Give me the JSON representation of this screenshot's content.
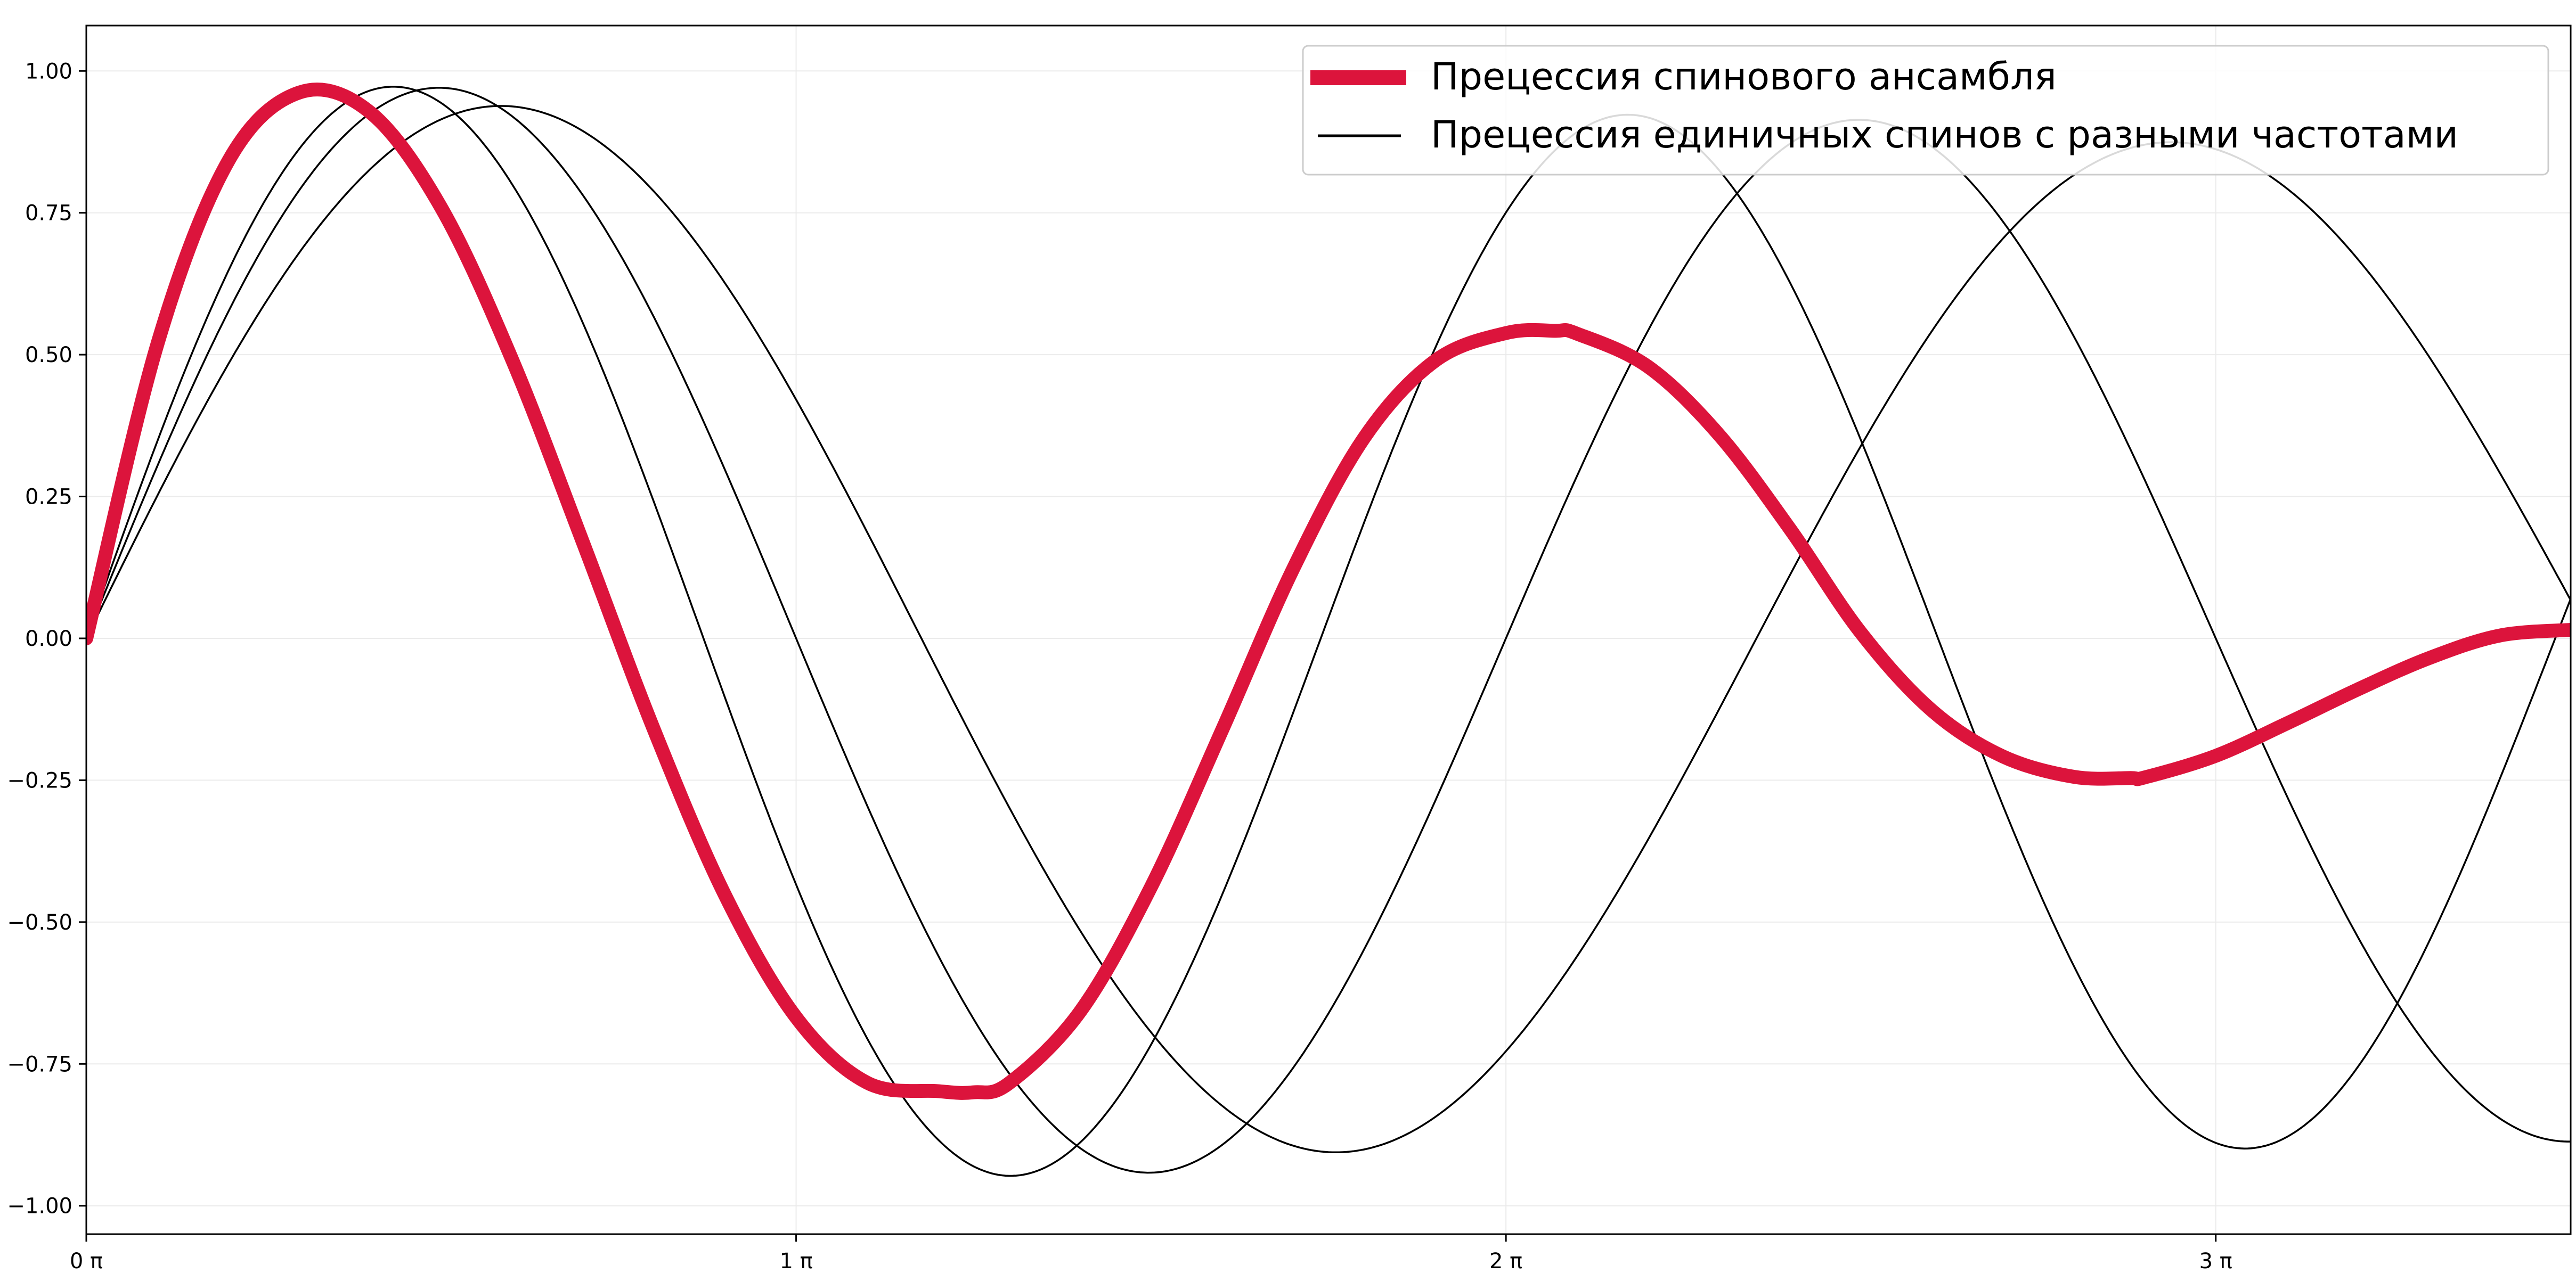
{
  "chart_data": {
    "type": "line",
    "title": "",
    "xlabel": "",
    "ylabel": "",
    "xlim": [
      0,
      3.5
    ],
    "ylim": [
      -1.05,
      1.08
    ],
    "x_unit": "π",
    "x_ticks": [
      0,
      1,
      2,
      3
    ],
    "x_tick_labels": [
      "0 π",
      "1 π",
      "2 π",
      "3 π"
    ],
    "y_ticks": [
      -1.0,
      -0.75,
      -0.5,
      -0.25,
      0.0,
      0.25,
      0.5,
      0.75,
      1.0
    ],
    "y_tick_labels": [
      "−1.00",
      "−0.75",
      "−0.50",
      "−0.25",
      "0.00",
      "0.25",
      "0.50",
      "0.75",
      "1.00"
    ],
    "grid": true,
    "legend_position": "top-right",
    "colors": {
      "ensemble": "#dc143c",
      "single_spin": "#000000",
      "grid": "#ebebeb"
    },
    "series": [
      {
        "name": "Прецессия спинового ансамбля",
        "role": "ensemble",
        "x": [
          0,
          0.1,
          0.2,
          0.3,
          0.4,
          0.5,
          0.6,
          0.7,
          0.8,
          0.9,
          1.0,
          1.1,
          1.2,
          1.25,
          1.3,
          1.4,
          1.5,
          1.6,
          1.7,
          1.8,
          1.9,
          2.0,
          2.07,
          2.1,
          2.2,
          2.3,
          2.4,
          2.5,
          2.6,
          2.7,
          2.8,
          2.88,
          2.9,
          3.0,
          3.1,
          3.2,
          3.3,
          3.4,
          3.5
        ],
        "y": [
          0,
          0.518,
          0.841,
          0.962,
          0.927,
          0.759,
          0.491,
          0.168,
          -0.162,
          -0.453,
          -0.668,
          -0.783,
          -0.798,
          -0.8,
          -0.784,
          -0.658,
          -0.438,
          -0.162,
          0.122,
          0.353,
          0.489,
          0.538,
          0.542,
          0.537,
          0.479,
          0.359,
          0.193,
          0.01,
          -0.127,
          -0.208,
          -0.244,
          -0.246,
          -0.245,
          -0.207,
          -0.15,
          -0.09,
          -0.035,
          0.005,
          0.015
        ]
      },
      {
        "name": "Прецессия единичных спинов с разными частотами",
        "role": "single",
        "amplitude": 0.955,
        "omega": 0.85,
        "decay": 0.03,
        "x": [
          0,
          0.59,
          1.76,
          2.94
        ],
        "y": [
          0,
          0.955,
          -0.955,
          0.955
        ]
      },
      {
        "role": "single",
        "amplitude": 0.985,
        "omega": 1.0,
        "decay": 0.03,
        "x": [
          0,
          0.5,
          1.5,
          2.5,
          3.5
        ],
        "y": [
          0,
          0.985,
          -0.955,
          0.925,
          -0.9
        ]
      },
      {
        "role": "single",
        "amplitude": 0.985,
        "omega": 1.15,
        "decay": 0.03,
        "x": [
          0,
          0.435,
          1.3,
          2.17,
          3.04
        ],
        "y": [
          0,
          0.985,
          -0.955,
          0.925,
          -0.9
        ]
      }
    ]
  }
}
